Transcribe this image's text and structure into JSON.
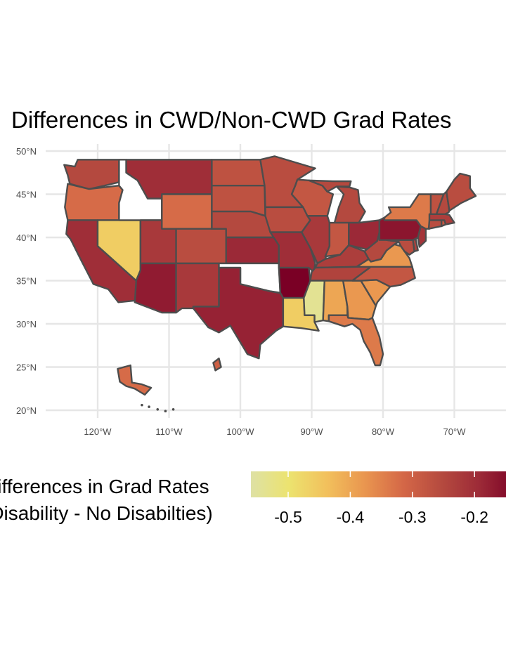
{
  "chart_data": {
    "type": "choropleth",
    "title": "Differences in CWD/Non-CWD Grad Rates",
    "x_ticks": [
      "120°W",
      "110°W",
      "100°W",
      "90°W",
      "80°W",
      "70°W"
    ],
    "x_tick_values": [
      -120,
      -110,
      -100,
      -90,
      -80,
      -70
    ],
    "y_ticks": [
      "20°N",
      "25°N",
      "30°N",
      "35°N",
      "40°N",
      "45°N",
      "50°N"
    ],
    "y_tick_values": [
      20,
      25,
      30,
      35,
      40,
      45,
      50
    ],
    "grid": true,
    "legend": {
      "title_lines": [
        "Differences in Grad Rates",
        "(Disability - No Disabilties)"
      ],
      "ticks": [
        "-0.5",
        "-0.4",
        "-0.3",
        "-0.2"
      ],
      "tick_values": [
        -0.5,
        -0.4,
        -0.3,
        -0.2
      ],
      "range": [
        -0.56,
        -0.13
      ],
      "placement": "bottom",
      "colors": [
        "#dee1a4",
        "#ece36f",
        "#f2c05c",
        "#e9954f",
        "#d46747",
        "#b54a3f",
        "#9c2a37",
        "#7a0025"
      ]
    },
    "no_data_states": [
      "ID",
      "OK"
    ],
    "values": {
      "WA": -0.25,
      "OR": -0.32,
      "CA": -0.2,
      "NV": -0.46,
      "AZ": -0.17,
      "UT": -0.22,
      "MT": -0.2,
      "WY": -0.32,
      "CO": -0.26,
      "NM": -0.22,
      "ND": -0.27,
      "SD": -0.27,
      "NE": -0.25,
      "KS": -0.19,
      "TX": -0.18,
      "MN": -0.26,
      "IA": -0.26,
      "MO": -0.2,
      "AR": -0.13,
      "LA": -0.46,
      "WI": -0.28,
      "IL": -0.22,
      "MI": -0.25,
      "IN": -0.28,
      "OH": -0.19,
      "KY": -0.23,
      "TN": -0.24,
      "MS": -0.54,
      "AL": -0.4,
      "GA": -0.38,
      "FL": -0.34,
      "SC": -0.38,
      "NC": -0.28,
      "VA": -0.38,
      "WV": -0.25,
      "MD": -0.26,
      "DE": -0.24,
      "PA": -0.16,
      "NJ": -0.21,
      "NY": -0.34,
      "CT": -0.26,
      "RI": -0.28,
      "MA": -0.23,
      "VT": -0.27,
      "NH": -0.25,
      "ME": -0.26,
      "AK": -0.32,
      "HI": -0.3
    }
  }
}
